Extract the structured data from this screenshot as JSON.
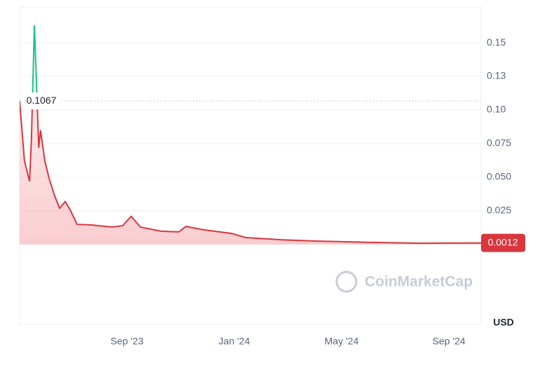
{
  "chart_data": {
    "type": "line",
    "x": [
      0,
      0.18,
      0.37,
      0.44,
      0.55,
      0.63,
      0.71,
      0.78,
      0.94,
      1.1,
      1.31,
      1.49,
      1.7,
      1.88,
      2.14,
      2.67,
      3.45,
      3.84,
      4.16,
      4.5,
      5.28,
      5.93,
      6.2,
      6.85,
      7.9,
      8.42,
      9.73,
      11.03,
      13.12,
      14.95,
      17.2
    ],
    "series": [
      {
        "color": "#d9363e",
        "values": [
          0.1067,
          0.062,
          0.047,
          0.078,
          0.163,
          0.119,
          0.072,
          0.085,
          0.062,
          0.049,
          0.036,
          0.027,
          0.032,
          0.026,
          0.015,
          0.0146,
          0.013,
          0.014,
          0.021,
          0.013,
          0.0099,
          0.0094,
          0.0135,
          0.011,
          0.0083,
          0.0052,
          0.0036,
          0.0026,
          0.0016,
          0.001,
          0.0012
        ]
      }
    ],
    "baseline": 0.1067,
    "above_color": "#16c784",
    "xlim": [
      0,
      17.2
    ],
    "xticks": [
      {
        "value": 4,
        "label": "Sep '23"
      },
      {
        "value": 8,
        "label": "Jan '24"
      },
      {
        "value": 12,
        "label": "May '24"
      },
      {
        "value": 16,
        "label": "Sep '24"
      }
    ],
    "ylim": [
      -0.0594,
      0.1766
    ],
    "yticks": [
      0.025,
      {
        "value": 0.05,
        "label": "0.050"
      },
      0.075,
      {
        "value": 0.1,
        "label": "0.10"
      },
      {
        "value": 0.125,
        "label": "0.13"
      },
      0.15
    ],
    "grid": true,
    "y_unit": "USD",
    "watermark": "CoinMarketCap"
  }
}
